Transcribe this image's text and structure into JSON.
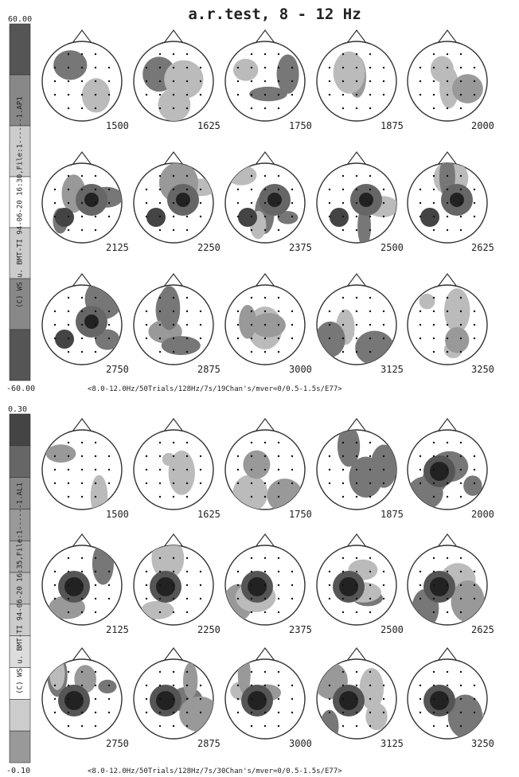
{
  "title": "a.r.test, 8 - 12 Hz",
  "panels": [
    {
      "scale_max": "60.00",
      "scale_min": "-60.00",
      "side_label": "(C) WS u. BMT-TI 94-06-20 16:30,File:1------1.AP1",
      "footer": "<8.0-12.0Hz/50Trials/128Hz/7s/19Chan's/mver=0/0.5-1.5s/E77>",
      "maps": [
        "1500",
        "1625",
        "1750",
        "1875",
        "2000",
        "2125",
        "2250",
        "2375",
        "2500",
        "2625",
        "2750",
        "2875",
        "3000",
        "3125",
        "3250"
      ]
    },
    {
      "scale_max": "0.30",
      "scale_min": "-0.10",
      "side_label": "(C) WS u. BMT-TI 94-06-20 16:35,File:1------1.AL1",
      "footer": "<8.0-12.0Hz/50Trials/128Hz/7s/30Chan's/mver=0/0.5-1.5s/E77>",
      "maps": [
        "1500",
        "1625",
        "1750",
        "1875",
        "2000",
        "2125",
        "2250",
        "2375",
        "2500",
        "2625",
        "2750",
        "2875",
        "3000",
        "3125",
        "3250"
      ]
    }
  ]
}
